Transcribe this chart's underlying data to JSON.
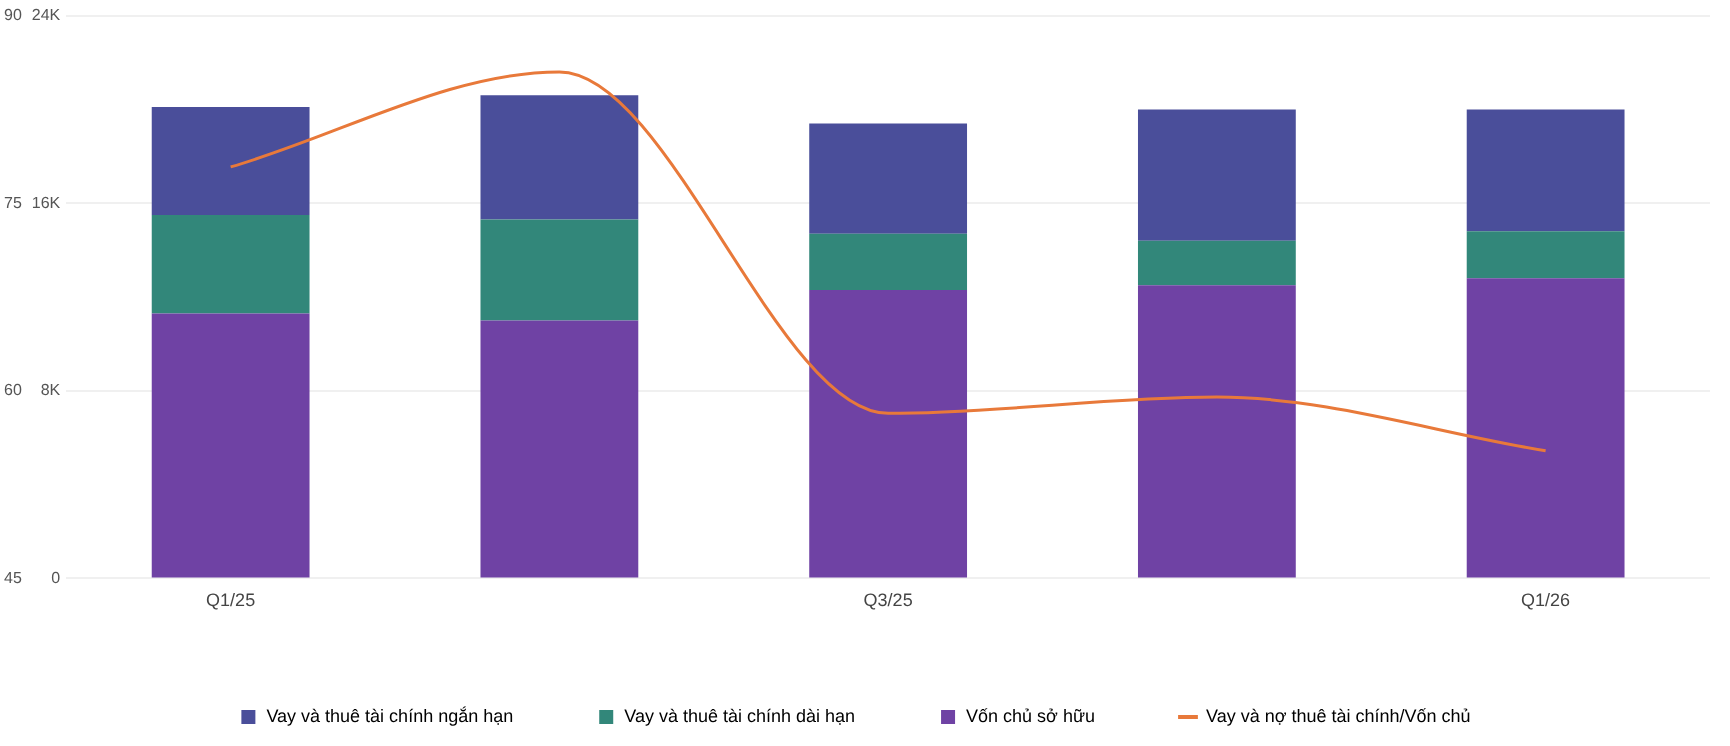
{
  "chart_data": {
    "type": "bar",
    "stacked": true,
    "categories": [
      "Q1/25",
      null,
      "Q3/25",
      null,
      "Q1/26"
    ],
    "series": [
      {
        "name": "Vốn chủ sở hữu",
        "color": "#6f42a4",
        "values": [
          11300,
          11000,
          12300,
          12500,
          12800
        ]
      },
      {
        "name": "Vay và thuê tài chính dài hạn",
        "color": "#32877a",
        "values": [
          4200,
          4300,
          2400,
          1900,
          2000
        ]
      },
      {
        "name": "Vay và thuê tài chính ngắn hạn",
        "color": "#4a4e9a",
        "values": [
          4600,
          5300,
          4700,
          5600,
          5200
        ]
      },
      {
        "name": "Vay và nợ thuê tài chính/Vốn chủ",
        "type": "line",
        "axis": "y2",
        "color": "#e8793a",
        "values": [
          77.9,
          85.5,
          58.2,
          59.5,
          55.2
        ]
      }
    ],
    "ylim": [
      0,
      24000
    ],
    "yticks": [
      {
        "value": 0,
        "label": "0"
      },
      {
        "value": 8000,
        "label": "8K"
      },
      {
        "value": 16000,
        "label": "16K"
      },
      {
        "value": 24000,
        "label": "24K"
      }
    ],
    "y2lim": [
      45,
      90
    ],
    "y2ticks": [
      45,
      60,
      75,
      90
    ],
    "grid": "y",
    "legend": "bottom",
    "marker": "none"
  }
}
